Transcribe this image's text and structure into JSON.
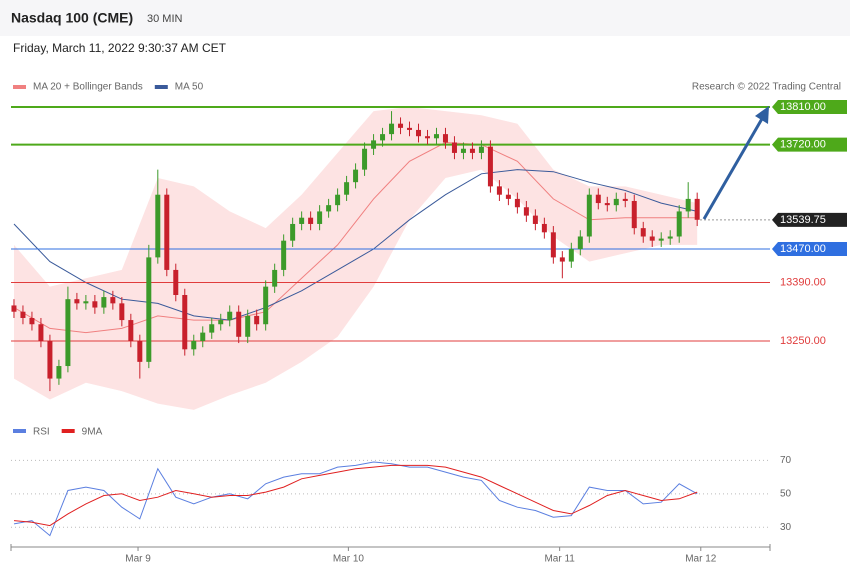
{
  "header": {
    "title": "Nasdaq 100 (CME)",
    "timeframe": "30 MIN",
    "timestamp": "Friday, March 11, 2022 9:30:37 AM CET",
    "credit": "Research © 2022 Trading Central"
  },
  "chart_data": [
    {
      "type": "candlestick",
      "xlim": [
        -0.33,
        84.1
      ],
      "ylim": [
        13080,
        13830
      ],
      "up_color": "#3c9a2a",
      "down_color": "#c8202c",
      "open": [
        13335,
        13320,
        13305,
        13290,
        13250,
        13160,
        13190,
        13350,
        13340,
        13345,
        13330,
        13355,
        13340,
        13300,
        13250,
        13200,
        13450,
        13600,
        13420,
        13360,
        13230,
        13250,
        13270,
        13290,
        13300,
        13320,
        13260,
        13310,
        13290,
        13380,
        13420,
        13490,
        13530,
        13545,
        13530,
        13560,
        13575,
        13600,
        13630,
        13660,
        13710,
        13730,
        13745,
        13770,
        13760,
        13755,
        13740,
        13735,
        13745,
        13725,
        13700,
        13710,
        13700,
        13715,
        13620,
        13600,
        13590,
        13570,
        13550,
        13530,
        13510,
        13450,
        13440,
        13470,
        13500,
        13600,
        13580,
        13575,
        13590,
        13585,
        13520,
        13500,
        13490,
        13495,
        13500,
        13560,
        13590
      ],
      "high": [
        13350,
        13335,
        13320,
        13305,
        13265,
        13205,
        13380,
        13365,
        13360,
        13360,
        13370,
        13370,
        13355,
        13315,
        13265,
        13480,
        13660,
        13615,
        13435,
        13375,
        13265,
        13285,
        13305,
        13315,
        13335,
        13335,
        13325,
        13325,
        13395,
        13435,
        13505,
        13545,
        13560,
        13560,
        13575,
        13590,
        13615,
        13645,
        13675,
        13725,
        13745,
        13760,
        13800,
        13785,
        13775,
        13770,
        13755,
        13760,
        13760,
        13740,
        13725,
        13725,
        13730,
        13730,
        13635,
        13615,
        13605,
        13585,
        13565,
        13545,
        13525,
        13465,
        13485,
        13515,
        13615,
        13615,
        13595,
        13605,
        13605,
        13600,
        13535,
        13515,
        13510,
        13515,
        13575,
        13630,
        13605
      ],
      "low": [
        13305,
        13290,
        13275,
        13235,
        13130,
        13145,
        13175,
        13325,
        13325,
        13315,
        13315,
        13325,
        13285,
        13235,
        13160,
        13185,
        13435,
        13405,
        13345,
        13215,
        13215,
        13235,
        13255,
        13275,
        13285,
        13245,
        13245,
        13275,
        13275,
        13365,
        13405,
        13475,
        13515,
        13515,
        13515,
        13545,
        13560,
        13585,
        13615,
        13645,
        13695,
        13715,
        13730,
        13745,
        13740,
        13725,
        13720,
        13720,
        13710,
        13685,
        13685,
        13685,
        13685,
        13605,
        13585,
        13575,
        13555,
        13535,
        13515,
        13495,
        13435,
        13400,
        13425,
        13455,
        13485,
        13565,
        13560,
        13560,
        13570,
        13505,
        13485,
        13475,
        13475,
        13480,
        13485,
        13545,
        13525
      ],
      "close": [
        13320,
        13305,
        13290,
        13250,
        13160,
        13190,
        13350,
        13340,
        13345,
        13330,
        13355,
        13340,
        13300,
        13250,
        13200,
        13450,
        13600,
        13420,
        13360,
        13230,
        13250,
        13270,
        13290,
        13300,
        13320,
        13260,
        13310,
        13290,
        13380,
        13420,
        13490,
        13530,
        13545,
        13530,
        13560,
        13575,
        13600,
        13630,
        13660,
        13710,
        13730,
        13745,
        13770,
        13760,
        13755,
        13740,
        13735,
        13745,
        13725,
        13700,
        13710,
        13700,
        13715,
        13620,
        13600,
        13590,
        13570,
        13550,
        13530,
        13510,
        13450,
        13440,
        13470,
        13500,
        13600,
        13580,
        13575,
        13590,
        13585,
        13520,
        13500,
        13490,
        13495,
        13500,
        13560,
        13590,
        13540
      ],
      "overlays": [
        {
          "name": "MA 20 + Bollinger Bands",
          "color": "#f08080",
          "band_color": "#fde3e3",
          "x": [
            0,
            4,
            8,
            12,
            16,
            20,
            24,
            28,
            32,
            36,
            40,
            44,
            48,
            52,
            56,
            60,
            64,
            68,
            72,
            76
          ],
          "values": [
            13330,
            13280,
            13270,
            13280,
            13310,
            13300,
            13300,
            13320,
            13400,
            13480,
            13590,
            13680,
            13725,
            13720,
            13680,
            13590,
            13540,
            13545,
            13545,
            13545
          ],
          "upper": [
            13480,
            13380,
            13400,
            13420,
            13640,
            13620,
            13560,
            13520,
            13600,
            13700,
            13800,
            13810,
            13800,
            13790,
            13770,
            13660,
            13620,
            13620,
            13600,
            13580
          ],
          "lower": [
            13160,
            13110,
            13150,
            13130,
            13100,
            13085,
            13120,
            13150,
            13200,
            13260,
            13380,
            13540,
            13640,
            13660,
            13590,
            13500,
            13440,
            13460,
            13480,
            13480
          ]
        },
        {
          "name": "MA 50",
          "color": "#3a5a9a",
          "x": [
            0,
            4,
            8,
            12,
            16,
            20,
            24,
            28,
            32,
            36,
            40,
            44,
            48,
            52,
            56,
            60,
            64,
            68,
            72,
            76
          ],
          "values": [
            13530,
            13440,
            13390,
            13350,
            13340,
            13310,
            13300,
            13330,
            13370,
            13420,
            13470,
            13540,
            13600,
            13650,
            13660,
            13655,
            13630,
            13610,
            13580,
            13560
          ]
        }
      ],
      "levels": [
        {
          "value": 13810,
          "label": "13810.00",
          "color": "#4ea91a",
          "boxed": true
        },
        {
          "value": 13720,
          "label": "13720.00",
          "color": "#4ea91a",
          "boxed": true
        },
        {
          "value": 13539.75,
          "label": "13539.75",
          "color": "#222222",
          "boxed": true
        },
        {
          "value": 13470,
          "label": "13470.00",
          "color": "#2f6fe0",
          "boxed": true
        },
        {
          "value": 13390,
          "label": "13390.00",
          "color": "#e03c3c",
          "boxed": false
        },
        {
          "value": 13250,
          "label": "13250.00",
          "color": "#e03c3c",
          "boxed": false
        }
      ]
    },
    {
      "type": "line",
      "xlim": [
        -0.33,
        84.1
      ],
      "ylim": [
        20,
        75
      ],
      "yticks": [
        30,
        50,
        70
      ],
      "grid": true,
      "xticks": [
        {
          "value": 13.8,
          "label": "Mar 9"
        },
        {
          "value": 37.2,
          "label": "Mar 10"
        },
        {
          "value": 60.7,
          "label": "Mar 11"
        },
        {
          "value": 76.4,
          "label": "Mar 12"
        }
      ],
      "x": [
        0,
        2,
        4,
        6,
        8,
        10,
        12,
        14,
        16,
        18,
        20,
        22,
        24,
        26,
        28,
        30,
        32,
        34,
        36,
        38,
        40,
        42,
        44,
        46,
        48,
        50,
        52,
        54,
        56,
        58,
        60,
        62,
        64,
        66,
        68,
        70,
        72,
        74,
        76
      ],
      "series": [
        {
          "name": "RSI",
          "color": "#5b7fe0",
          "values": [
            32,
            34,
            25,
            52,
            54,
            52,
            42,
            35,
            65,
            48,
            44,
            48,
            50,
            47,
            56,
            60,
            62,
            62,
            66,
            67,
            69,
            68,
            66,
            66,
            63,
            60,
            58,
            46,
            42,
            40,
            36,
            37,
            54,
            52,
            52,
            44,
            45,
            56,
            50
          ]
        },
        {
          "name": "9MA",
          "color": "#e02020",
          "values": [
            34,
            33,
            31,
            38,
            44,
            49,
            50,
            46,
            48,
            52,
            50,
            48,
            49,
            49,
            51,
            54,
            59,
            61,
            63,
            65,
            66,
            67,
            67,
            67,
            66,
            63,
            60,
            55,
            50,
            45,
            40,
            38,
            43,
            49,
            52,
            49,
            46,
            47,
            51
          ]
        }
      ]
    }
  ]
}
